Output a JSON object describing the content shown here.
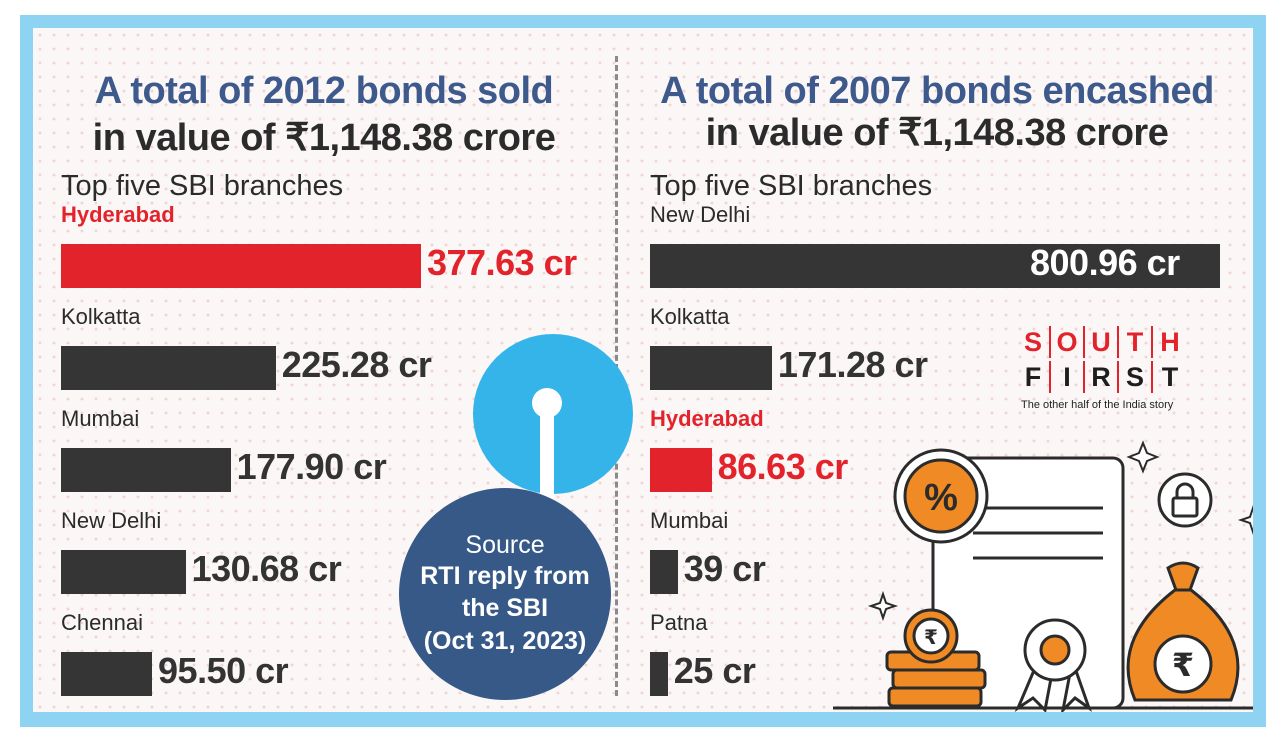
{
  "left": {
    "headline_line1": "A total of 2012 bonds sold",
    "headline_line2": "in value of ₹1,148.38 crore",
    "subheading": "Top five SBI branches"
  },
  "right": {
    "headline_line1": "A total of 2007 bonds encashed",
    "headline_line2": "in value of ₹1,148.38 crore",
    "subheading": "Top five SBI branches"
  },
  "source": {
    "title": "Source",
    "line1": "RTI reply from",
    "line2": "the SBI",
    "line3": "(Oct 31, 2023)"
  },
  "brand": {
    "row1": [
      "S",
      "O",
      "U",
      "T",
      "H"
    ],
    "row2": [
      "F",
      "I",
      "R",
      "S",
      "T"
    ],
    "tagline": "The other half of the India story"
  },
  "colors": {
    "highlight": "#e3232b",
    "bar": "#353535",
    "heading_blue": "#3e5a8c",
    "frame": "#8fd3f3",
    "source_circle": "#365988",
    "sbi_logo": "#35b4ea",
    "illustration": "#f08a24"
  },
  "icons": [
    "sbi-logo-icon",
    "percent-badge-icon",
    "padlock-icon",
    "rupee-coin-icon",
    "certificate-icon",
    "award-ribbon-icon",
    "money-bag-icon",
    "sparkle-icon"
  ],
  "chart_data": [
    {
      "type": "bar",
      "orientation": "horizontal",
      "title": "A total of 2012 bonds sold in value of ₹1,148.38 crore",
      "subtitle": "Top five SBI branches",
      "categories": [
        "Hyderabad",
        "Kolkatta",
        "Mumbai",
        "New Delhi",
        "Chennai"
      ],
      "values": [
        377.63,
        225.28,
        177.9,
        130.68,
        95.5
      ],
      "value_labels": [
        "377.63 cr",
        "225.28 cr",
        "177.90 cr",
        "130.68 cr",
        "95.50 cr"
      ],
      "highlight": "Hyderabad",
      "unit": "cr",
      "grid": false
    },
    {
      "type": "bar",
      "orientation": "horizontal",
      "title": "A total of 2007 bonds encashed in value of ₹1,148.38 crore",
      "subtitle": "Top five SBI branches",
      "categories": [
        "New Delhi",
        "Kolkatta",
        "Hyderabad",
        "Mumbai",
        "Patna"
      ],
      "values": [
        800.96,
        171.28,
        86.63,
        39,
        25
      ],
      "value_labels": [
        "800.96 cr",
        "171.28 cr",
        "86.63 cr",
        "39 cr",
        "25 cr"
      ],
      "highlight": "Hyderabad",
      "unit": "cr",
      "grid": false
    }
  ]
}
